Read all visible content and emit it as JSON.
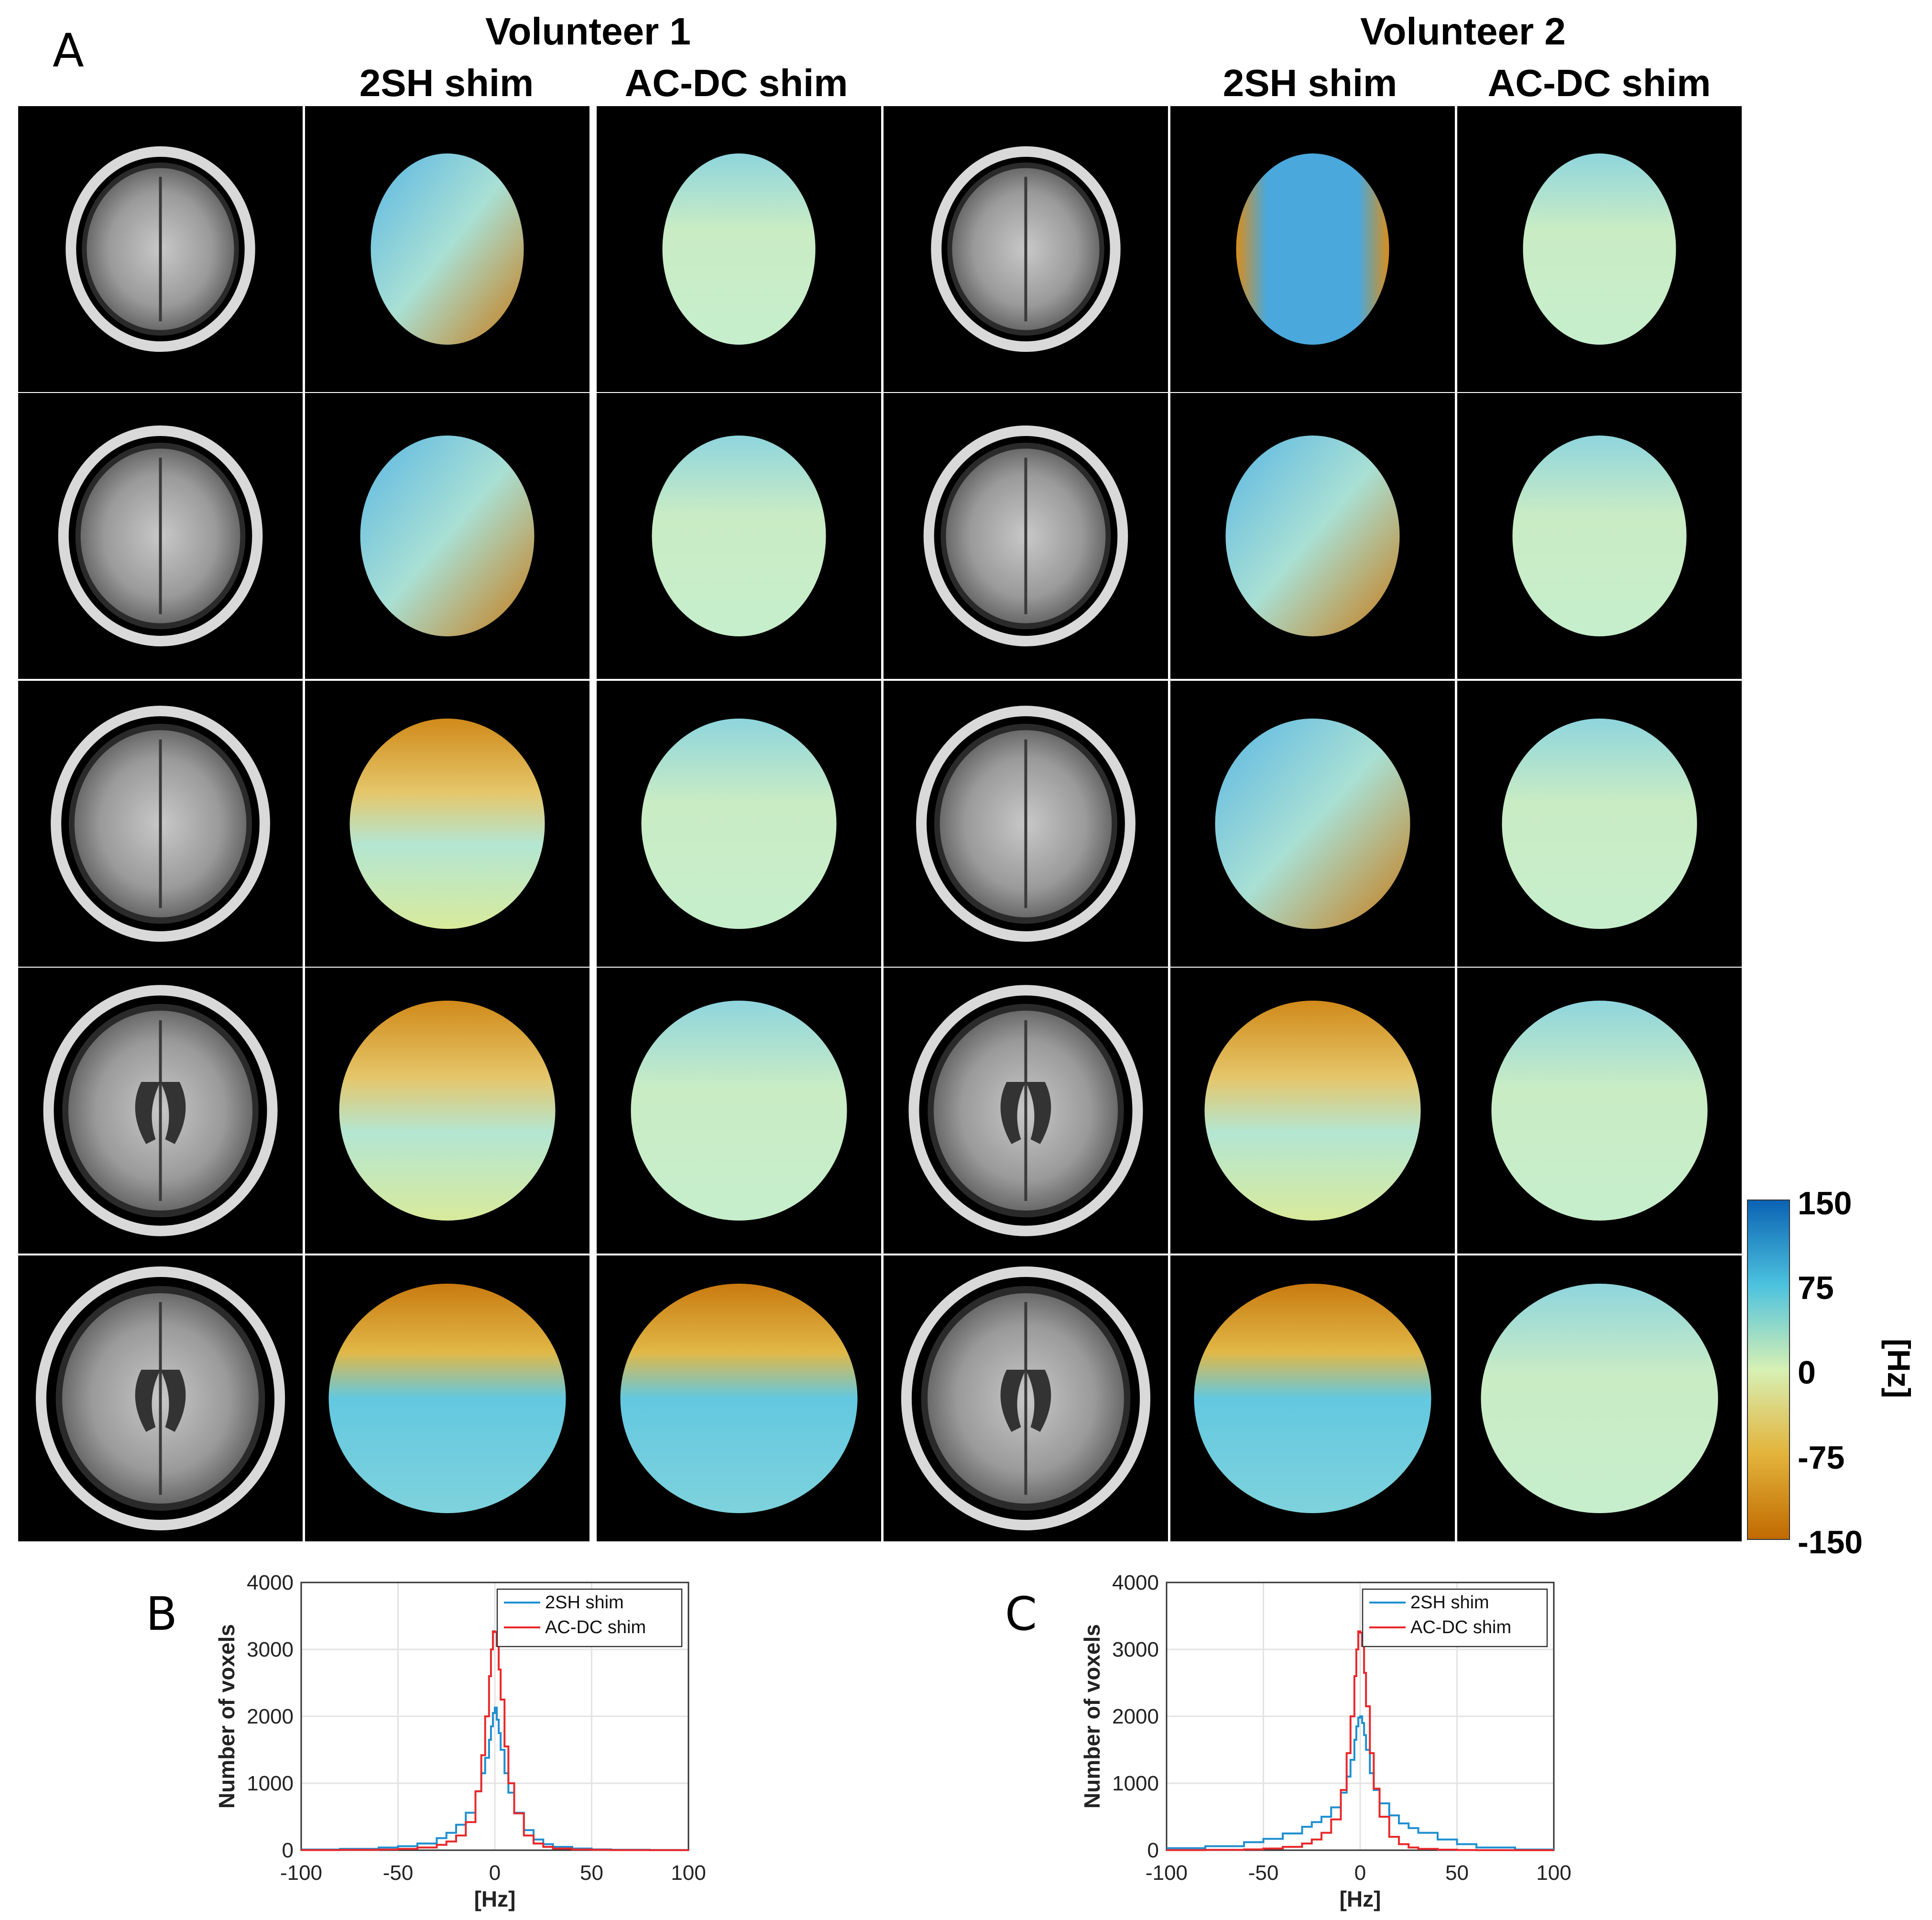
{
  "panels": {
    "A": "A",
    "B": "B",
    "C": "C"
  },
  "volunteers": [
    {
      "title": "Volunteer 1",
      "col_2sh": "2SH shim",
      "col_acdc": "AC-DC shim"
    },
    {
      "title": "Volunteer 2",
      "col_2sh": "2SH shim",
      "col_acdc": "AC-DC shim"
    }
  ],
  "colorbar": {
    "ticks": [
      "150",
      "75",
      "0",
      "-75",
      "-150"
    ],
    "unit": "[Hz]",
    "range": [
      -150,
      150
    ],
    "colors": [
      "#c06a00",
      "#e3b33a",
      "#d7f0b4",
      "#4cc2de",
      "#0a62b3"
    ]
  },
  "chart_data": [
    {
      "panel": "B",
      "type": "line",
      "step": true,
      "xlabel": "[Hz]",
      "ylabel": "Number of voxels",
      "xlim": [
        -100,
        100
      ],
      "ylim": [
        0,
        4000
      ],
      "xticks": [
        "-100",
        "-50",
        "0",
        "50",
        "100"
      ],
      "yticks": [
        "0",
        "1000",
        "2000",
        "3000",
        "4000"
      ],
      "grid": true,
      "legend_position": "top-right",
      "x": [
        -100,
        -80,
        -60,
        -50,
        -40,
        -30,
        -25,
        -20,
        -15,
        -10,
        -7,
        -5,
        -3,
        -2,
        -1,
        0,
        1,
        2,
        3,
        5,
        7,
        10,
        15,
        20,
        25,
        30,
        40,
        50,
        60,
        80,
        100
      ],
      "series": [
        {
          "name": "2SH shim",
          "color": "#1f8fd0",
          "values": [
            10,
            20,
            40,
            60,
            100,
            180,
            260,
            380,
            560,
            880,
            1150,
            1380,
            1650,
            1850,
            2050,
            2130,
            1950,
            1750,
            1500,
            1150,
            860,
            560,
            300,
            160,
            90,
            50,
            25,
            12,
            6,
            3,
            1
          ]
        },
        {
          "name": "AC-DC shim",
          "color": "#e8282b",
          "values": [
            2,
            5,
            10,
            20,
            40,
            80,
            130,
            220,
            420,
            880,
            1420,
            2000,
            2600,
            3000,
            3270,
            3260,
            3050,
            2700,
            2250,
            1550,
            1000,
            550,
            220,
            100,
            50,
            25,
            10,
            5,
            2,
            1,
            0
          ]
        }
      ]
    },
    {
      "panel": "C",
      "type": "line",
      "step": true,
      "xlabel": "[Hz]",
      "ylabel": "Number of voxels",
      "xlim": [
        -100,
        100
      ],
      "ylim": [
        0,
        4000
      ],
      "xticks": [
        "-100",
        "-50",
        "0",
        "50",
        "100"
      ],
      "yticks": [
        "0",
        "1000",
        "2000",
        "3000",
        "4000"
      ],
      "grid": true,
      "legend_position": "top-right",
      "x": [
        -100,
        -80,
        -60,
        -50,
        -40,
        -30,
        -25,
        -20,
        -15,
        -10,
        -7,
        -5,
        -3,
        -2,
        -1,
        0,
        1,
        2,
        3,
        5,
        7,
        10,
        15,
        20,
        25,
        30,
        40,
        50,
        60,
        80,
        100
      ],
      "series": [
        {
          "name": "2SH shim",
          "color": "#1f8fd0",
          "values": [
            30,
            60,
            120,
            170,
            250,
            350,
            420,
            500,
            640,
            860,
            1100,
            1350,
            1650,
            1850,
            1980,
            2000,
            1900,
            1720,
            1500,
            1150,
            900,
            700,
            520,
            400,
            330,
            260,
            160,
            90,
            40,
            10,
            2
          ]
        },
        {
          "name": "AC-DC shim",
          "color": "#e8282b",
          "values": [
            2,
            5,
            12,
            25,
            50,
            100,
            160,
            260,
            460,
            900,
            1450,
            2000,
            2600,
            3000,
            3270,
            3250,
            3050,
            2650,
            2150,
            1450,
            920,
            500,
            200,
            90,
            40,
            20,
            8,
            3,
            1,
            0,
            0
          ]
        }
      ]
    }
  ]
}
